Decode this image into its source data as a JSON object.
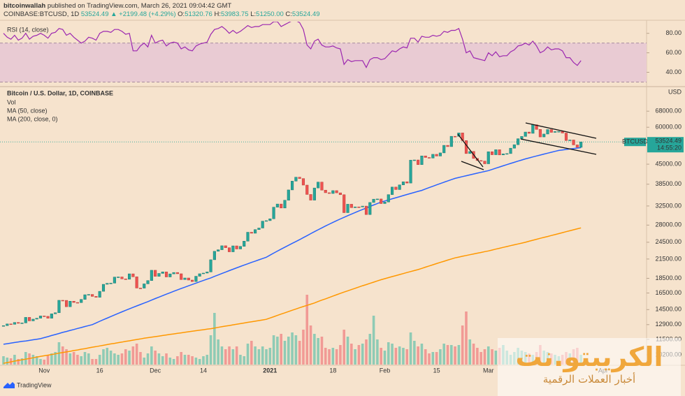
{
  "header": {
    "publisher_name": "bitcoinwallah",
    "publisher_rest": "published on TradingView.com, March 26, 2021 09:04:42 GMT",
    "symbol": "COINBASE:BTCUSD, 1D",
    "price": "53524.49",
    "arrow": "▲",
    "change": "+2199.48 (+4.29%)",
    "ohlc": [
      {
        "label": "O:",
        "value": "51320.76"
      },
      {
        "label": "H:",
        "value": "53983.75"
      },
      {
        "label": "L:",
        "value": "51250.00"
      },
      {
        "label": "C:",
        "value": "53524.49"
      }
    ]
  },
  "chart_data": [
    {
      "type": "line",
      "title": "RSI (14, close)",
      "color": "#9c27b0",
      "band": [
        30,
        70
      ],
      "band_color": "#e9cbd3",
      "ylim": [
        26,
        92
      ],
      "yticks": [
        {
          "value": 80,
          "label": "80.00"
        },
        {
          "value": 60,
          "label": "60.00"
        },
        {
          "value": 40,
          "label": "40.00"
        }
      ],
      "values": [
        80,
        76,
        74,
        78,
        73,
        75,
        80,
        74,
        77,
        78,
        80,
        78,
        75,
        80,
        81,
        85,
        84,
        78,
        80,
        76,
        73,
        70,
        72,
        76,
        75,
        73,
        80,
        82,
        82,
        81,
        84,
        84,
        82,
        79,
        80,
        62,
        62,
        67,
        70,
        66,
        78,
        70,
        72,
        73,
        67,
        70,
        71,
        70,
        64,
        66,
        63,
        62,
        67,
        69,
        70,
        71,
        79,
        84,
        85,
        87,
        84,
        80,
        83,
        80,
        82,
        85,
        88,
        86,
        87,
        87,
        89,
        89,
        89,
        92,
        92,
        87,
        89,
        91,
        93,
        93,
        91,
        84,
        68,
        64,
        72,
        74,
        68,
        66,
        66,
        67,
        65,
        64,
        48,
        53,
        51,
        52,
        52,
        52,
        45,
        53,
        55,
        55,
        53,
        54,
        58,
        62,
        61,
        64,
        66,
        65,
        75,
        75,
        71,
        77,
        76,
        76,
        78,
        77,
        78,
        82,
        81,
        83,
        83,
        85,
        74,
        60,
        62,
        55,
        54,
        53,
        52,
        60,
        57,
        61,
        56,
        57,
        57,
        61,
        63,
        67,
        68,
        70,
        68,
        72,
        67,
        60,
        62,
        66,
        63,
        64,
        64,
        62,
        55,
        55,
        50,
        47,
        52,
        null,
        null,
        null,
        null,
        null,
        null,
        null,
        null,
        null,
        null,
        null,
        null,
        null
      ]
    },
    {
      "type": "candlestick",
      "title": "Bitcoin / U.S. Dollar, 1D, COINBASE",
      "currency": "USD",
      "log_scale": true,
      "up_color": "#26a69a",
      "down_color": "#ef5350",
      "ylim": [
        9450,
        81900
      ],
      "yticks": [
        {
          "value": 68000,
          "label": "68000.00"
        },
        {
          "value": 60000,
          "label": "60000.00"
        },
        {
          "value": 45000,
          "label": "45000.00"
        },
        {
          "value": 38500,
          "label": "38500.00"
        },
        {
          "value": 32500,
          "label": "32500.00"
        },
        {
          "value": 28000,
          "label": "28000.00"
        },
        {
          "value": 24500,
          "label": "24500.00"
        },
        {
          "value": 21500,
          "label": "21500.00"
        },
        {
          "value": 18500,
          "label": "18500.00"
        },
        {
          "value": 16500,
          "label": "16500.00"
        },
        {
          "value": 14500,
          "label": "14500.00"
        },
        {
          "value": 12900,
          "label": "12900.00"
        },
        {
          "value": 11500,
          "label": "11500.00"
        },
        {
          "value": 10200,
          "label": "10200.00"
        }
      ],
      "categories": [
        null,
        null,
        null,
        null,
        null,
        null,
        null,
        null,
        null,
        null,
        null,
        "Nov",
        null,
        null,
        null,
        null,
        null,
        null,
        null,
        null,
        null,
        null,
        null,
        null,
        null,
        null,
        "16",
        null,
        null,
        null,
        null,
        null,
        null,
        null,
        null,
        null,
        null,
        null,
        null,
        null,
        null,
        "Dec",
        null,
        null,
        null,
        null,
        null,
        null,
        null,
        null,
        null,
        null,
        null,
        null,
        "14",
        null,
        null,
        null,
        null,
        null,
        null,
        null,
        null,
        null,
        null,
        null,
        null,
        null,
        null,
        null,
        null,
        null,
        "2021",
        null,
        null,
        null,
        null,
        null,
        null,
        null,
        null,
        null,
        null,
        null,
        null,
        null,
        null,
        null,
        null,
        "18",
        null,
        null,
        null,
        null,
        null,
        null,
        null,
        null,
        null,
        null,
        null,
        null,
        null,
        "Feb",
        null,
        null,
        null,
        null,
        null,
        null,
        null,
        null,
        null,
        null,
        null,
        null,
        null,
        "15",
        null,
        null,
        null,
        null,
        null,
        null,
        null,
        null,
        null,
        null,
        null,
        null,
        null,
        "Mar",
        null,
        null,
        null,
        null,
        null,
        null,
        null,
        null,
        null,
        null,
        null,
        null,
        null,
        null,
        null,
        null,
        null,
        null,
        null,
        null,
        null,
        null,
        null,
        null,
        null,
        null,
        null,
        null,
        null,
        null,
        "Apr",
        null,
        null,
        null,
        null,
        null,
        null,
        null
      ],
      "close": [
        12800,
        12970,
        12930,
        13120,
        13030,
        13070,
        13650,
        13280,
        13460,
        13560,
        13800,
        13760,
        13560,
        14030,
        14150,
        15590,
        15580,
        14830,
        15480,
        15330,
        15310,
        15700,
        16280,
        16320,
        16070,
        15960,
        16720,
        17660,
        17800,
        17820,
        18680,
        18700,
        18420,
        18370,
        19160,
        18720,
        17150,
        17140,
        17720,
        18180,
        19700,
        18790,
        19220,
        19450,
        18700,
        19150,
        19360,
        19170,
        18320,
        18550,
        18250,
        18040,
        18800,
        19170,
        19270,
        19440,
        21380,
        22840,
        23110,
        23840,
        23480,
        22740,
        23820,
        23250,
        23730,
        24710,
        26490,
        26280,
        27040,
        27370,
        28880,
        28990,
        29410,
        32200,
        33000,
        31990,
        33990,
        36830,
        39440,
        40670,
        40240,
        38240,
        35550,
        34010,
        37390,
        39150,
        36770,
        36030,
        35820,
        36630,
        36000,
        35480,
        30850,
        32950,
        32080,
        32270,
        32260,
        32470,
        30400,
        33400,
        34270,
        34320,
        33110,
        33520,
        35510,
        37660,
        36930,
        38300,
        39240,
        38850,
        46440,
        46510,
        44850,
        48000,
        47410,
        47200,
        48600,
        47950,
        49140,
        52120,
        51600,
        55920,
        55890,
        57410,
        54090,
        48890,
        49700,
        47060,
        46300,
        46110,
        45140,
        49590,
        48440,
        50370,
        48370,
        48760,
        48880,
        50970,
        52380,
        54880,
        55860,
        57800,
        57220,
        61180,
        59000,
        55640,
        56910,
        58930,
        57660,
        58030,
        58100,
        57350,
        54100,
        54340,
        52300,
        51320,
        53524.49,
        null,
        null,
        null,
        null,
        null,
        null,
        null,
        null,
        null,
        null,
        null,
        null,
        null
      ],
      "volume": {
        "name": "Vol",
        "vlim": [
          0,
          100
        ],
        "up_color": "#8fcbb5",
        "down_color": "#f19a95",
        "values": [
          12,
          10,
          9,
          14,
          8,
          9,
          18,
          16,
          14,
          12,
          8,
          7,
          14,
          16,
          18,
          32,
          26,
          22,
          16,
          18,
          14,
          12,
          18,
          16,
          8,
          8,
          14,
          22,
          24,
          20,
          16,
          14,
          16,
          22,
          20,
          26,
          30,
          18,
          10,
          16,
          26,
          20,
          16,
          12,
          16,
          10,
          8,
          12,
          18,
          14,
          14,
          12,
          10,
          8,
          12,
          14,
          42,
          74,
          36,
          26,
          22,
          26,
          22,
          26,
          14,
          12,
          30,
          34,
          26,
          22,
          26,
          22,
          24,
          42,
          40,
          44,
          34,
          40,
          46,
          42,
          34,
          50,
          100,
          56,
          44,
          38,
          40,
          24,
          22,
          24,
          22,
          28,
          50,
          40,
          30,
          22,
          28,
          30,
          36,
          44,
          70,
          36,
          24,
          20,
          32,
          30,
          24,
          26,
          24,
          22,
          46,
          34,
          26,
          30,
          22,
          16,
          18,
          18,
          22,
          30,
          28,
          28,
          26,
          28,
          56,
          76,
          36,
          30,
          24,
          18,
          22,
          26,
          22,
          20,
          24,
          28,
          20,
          14,
          18,
          24,
          20,
          18,
          16,
          14,
          18,
          28,
          20,
          18,
          16,
          14,
          12,
          14,
          18,
          16,
          22,
          24,
          14,
          null,
          null,
          null,
          null,
          null,
          null,
          null,
          null,
          null,
          null,
          null,
          null,
          null
        ]
      },
      "series": [
        {
          "name": "MA (50, close)",
          "color": "#2962ff",
          "values": [
            11070,
            11120,
            11170,
            11220,
            11270,
            11320,
            11360,
            11410,
            11460,
            11510,
            11560,
            11660,
            11750,
            11850,
            11940,
            12040,
            12140,
            12230,
            12330,
            12420,
            12520,
            12610,
            12710,
            12800,
            12900,
            13070,
            13240,
            13410,
            13570,
            13740,
            13910,
            14080,
            14250,
            14420,
            14590,
            14750,
            14920,
            15090,
            15260,
            15430,
            15610,
            15800,
            15980,
            16170,
            16350,
            16530,
            16720,
            16900,
            17090,
            17270,
            17450,
            17640,
            17820,
            18010,
            18190,
            18380,
            18560,
            18780,
            18990,
            19210,
            19420,
            19640,
            19860,
            20070,
            20290,
            20500,
            20720,
            20940,
            21150,
            21370,
            21580,
            21800,
            22160,
            22510,
            22870,
            23220,
            23580,
            23930,
            24290,
            24640,
            25000,
            25400,
            25800,
            26200,
            26600,
            27000,
            27400,
            27800,
            28200,
            28600,
            29000,
            29380,
            29750,
            30130,
            30500,
            30880,
            31250,
            31630,
            32000,
            32380,
            32750,
            33130,
            33500,
            33790,
            34080,
            34370,
            34660,
            34950,
            35250,
            35540,
            35830,
            36120,
            36410,
            36700,
            37100,
            37500,
            37900,
            38300,
            38700,
            39100,
            39500,
            39900,
            40300,
            40580,
            40860,
            41130,
            41410,
            41690,
            41970,
            42240,
            42520,
            42800,
            43210,
            43620,
            44030,
            44440,
            44850,
            45260,
            45670,
            46080,
            46490,
            46900,
            47260,
            47610,
            47970,
            48320,
            48680,
            49030,
            49390,
            49740,
            50100,
            50280,
            50470,
            50650,
            50830,
            51020,
            51200,
            null,
            null,
            null,
            null,
            null,
            null,
            null,
            null,
            null,
            null,
            null,
            null,
            null
          ]
        },
        {
          "name": "MA (200, close, 0)",
          "color": "#ff9800",
          "values": [
            9550,
            9600,
            9650,
            9710,
            9760,
            9810,
            9860,
            9910,
            9960,
            10020,
            10070,
            10120,
            10170,
            10220,
            10270,
            10330,
            10380,
            10430,
            10480,
            10540,
            10590,
            10650,
            10700,
            10760,
            10820,
            10870,
            10930,
            10980,
            11040,
            11100,
            11150,
            11210,
            11260,
            11320,
            11370,
            11430,
            11490,
            11540,
            11600,
            11650,
            11700,
            11750,
            11800,
            11850,
            11900,
            11950,
            12000,
            12050,
            12100,
            12150,
            12200,
            12250,
            12300,
            12350,
            12400,
            12450,
            12500,
            12560,
            12630,
            12690,
            12750,
            12810,
            12880,
            12940,
            13000,
            13060,
            13130,
            13190,
            13250,
            13310,
            13380,
            13440,
            13580,
            13720,
            13860,
            14000,
            14140,
            14280,
            14430,
            14570,
            14710,
            14850,
            14990,
            15130,
            15270,
            15440,
            15610,
            15770,
            15940,
            16110,
            16280,
            16450,
            16620,
            16780,
            16950,
            17120,
            17290,
            17460,
            17620,
            17790,
            17960,
            18130,
            18300,
            18450,
            18600,
            18750,
            18900,
            19050,
            19200,
            19350,
            19500,
            19650,
            19800,
            19990,
            20180,
            20370,
            20560,
            20750,
            20940,
            21130,
            21320,
            21510,
            21700,
            21830,
            21970,
            22100,
            22230,
            22370,
            22500,
            22630,
            22770,
            22900,
            23060,
            23220,
            23380,
            23540,
            23700,
            23860,
            24020,
            24180,
            24340,
            24500,
            24690,
            24880,
            25070,
            25260,
            25440,
            25630,
            25820,
            26010,
            26200,
            26400,
            26600,
            26800,
            27000,
            27200,
            27400,
            null,
            null,
            null,
            null,
            null,
            null,
            null,
            null,
            null,
            null,
            null,
            null,
            null
          ]
        }
      ],
      "last": {
        "label": "BTCUSD",
        "value": 53524.49,
        "countdown": "14:55:20",
        "color": "#26a69a"
      }
    }
  ],
  "watermark": {
    "name": "الكريبتو.نت",
    "tagline": "أخبار العملات الرقمية"
  },
  "footer": {
    "brand": "TradingView"
  }
}
